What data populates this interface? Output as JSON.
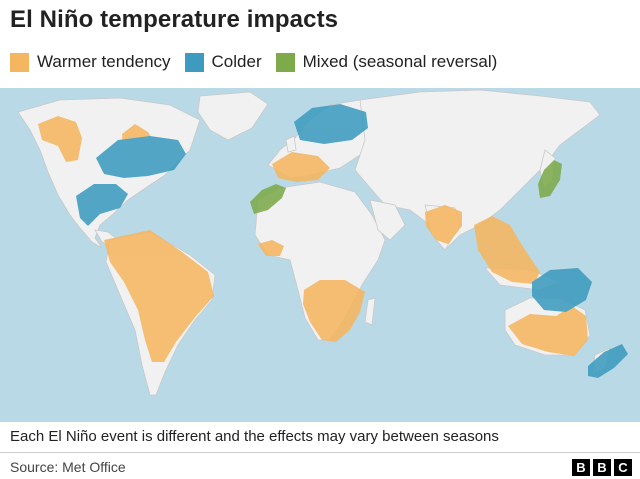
{
  "title": "El Niño temperature impacts",
  "legend": [
    {
      "label": "Warmer tendency",
      "color": "#f5b660",
      "icon": "orange-square"
    },
    {
      "label": "Colder",
      "color": "#3e9bbf",
      "icon": "blue-square"
    },
    {
      "label": "Mixed (seasonal reversal)",
      "color": "#7dab4c",
      "icon": "green-square"
    }
  ],
  "map": {
    "ocean_color": "#b9d9e7",
    "land_color": "#f1f1f1",
    "border_color": "#c9c9c9"
  },
  "note": "Each El Niño event is different and the effects may vary between seasons",
  "source": "Source: Met Office",
  "logo": [
    "B",
    "B",
    "C"
  ]
}
